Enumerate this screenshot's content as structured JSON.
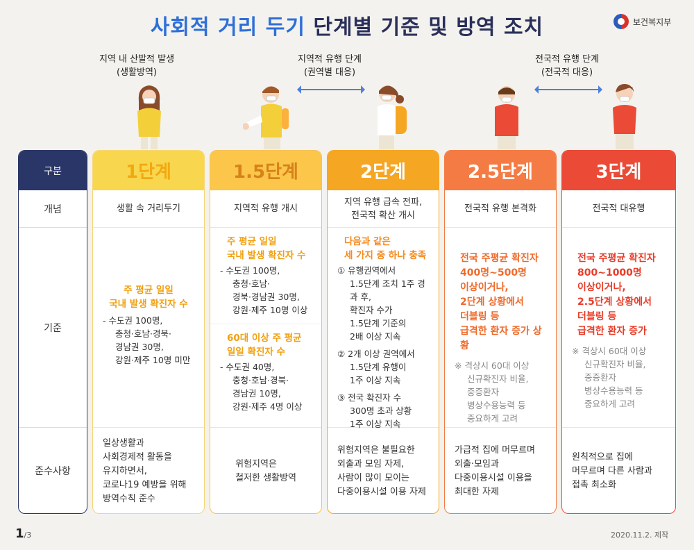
{
  "title": {
    "part1": "사회적 거리 두기",
    "part2": "단계별 기준 및 방역 조치"
  },
  "ministry": "보건복지부",
  "captions": {
    "local": [
      "지역 내 산발적 발생",
      "(생활방역)"
    ],
    "regional": [
      "지역적 유행 단계",
      "(권역별 대응)"
    ],
    "national": [
      "전국적 유행 단계",
      "(전국적 대응)"
    ]
  },
  "row_labels": {
    "header": "구분",
    "concept": "개념",
    "criteria": "기준",
    "comply": "준수사항"
  },
  "stages": [
    {
      "name": "1단계",
      "concept": "생활 속 거리두기",
      "highlight": [
        "주 평균 일일",
        "국내 발생 확진자 수"
      ],
      "body": [
        "- 수도권 100명,",
        "충청·호남·경북·",
        "경남권 30명,",
        "강원·제주 10명 미만"
      ],
      "comply": [
        "일상생활과",
        "사회경제적 활동을",
        "유지하면서,",
        "코로나19 예방을 위해",
        "방역수칙 준수"
      ]
    },
    {
      "name": "1.5단계",
      "concept": "지역적 유행 개시",
      "highlight": [
        "주 평균 일일",
        "국내 발생 확진자 수"
      ],
      "body": [
        "- 수도권 100명,",
        "충청·호남·",
        "경북·경남권 30명,",
        "강원·제주 10명 이상"
      ],
      "highlight2": [
        "60대 이상 주 평균",
        "일일 확진자 수"
      ],
      "body2": [
        "- 수도권 40명,",
        "충청·호남·경북·",
        "경남권 10명,",
        "강원·제주 4명 이상"
      ],
      "comply": [
        "위험지역은",
        "철저한 생활방역"
      ]
    },
    {
      "name": "2단계",
      "concept": [
        "지역 유행 급속 전파,",
        "전국적 확산 개시"
      ],
      "highlight": [
        "다음과 같은",
        "세 가지 중 하나 충족"
      ],
      "items": [
        [
          "① 유행권역에서",
          "1.5단계 조치 1주 경과 후,",
          "확진자 수가",
          "1.5단계 기준의",
          "2배 이상 지속"
        ],
        [
          "② 2개 이상 권역에서",
          "1.5단계 유행이",
          "1주 이상 지속"
        ],
        [
          "③ 전국 확진자 수",
          "300명 초과 상황",
          "1주 이상 지속"
        ]
      ],
      "comply": [
        "위험지역은 불필요한",
        "외출과 모임 자제,",
        "사람이 많이 모이는",
        "다중이용시설 이용 자제"
      ]
    },
    {
      "name": "2.5단계",
      "concept": "전국적 유행 본격화",
      "highlight": [
        "전국 주평균 확진자",
        "400명~500명",
        "이상이거나,",
        "2단계 상황에서",
        "더블링 등",
        "급격한 환자 증가 상황"
      ],
      "note": [
        "※ 격상시 60대 이상",
        "신규확진자 비율,",
        "중증환자",
        "병상수용능력 등",
        "중요하게 고려"
      ],
      "comply": [
        "가급적 집에 머무르며",
        "외출·모임과",
        "다중이용시설 이용을",
        "최대한 자제"
      ]
    },
    {
      "name": "3단계",
      "concept": "전국적 대유행",
      "highlight": [
        "전국 주평균 확진자",
        "800~1000명",
        "이상이거나,",
        "2.5단계 상황에서",
        "더블링 등",
        "급격한 환자 증가"
      ],
      "note": [
        "※ 격상시 60대 이상",
        "신규확진자 비율,",
        "중증환자",
        "병상수용능력 등",
        "중요하게 고려"
      ],
      "comply": [
        "원칙적으로 집에",
        "머무르며 다른 사람과",
        "접촉 최소화"
      ]
    }
  ],
  "pager": {
    "current": "1",
    "total": "/3"
  },
  "date": "2020.11.2. 제작",
  "colors": {
    "navy": "#2a3668",
    "stage1": "#f8d74e",
    "stage15": "#fbc64a",
    "stage2": "#f5a623",
    "stage25": "#f47b44",
    "stage3": "#ea4a36",
    "blue": "#2e6fd8"
  }
}
